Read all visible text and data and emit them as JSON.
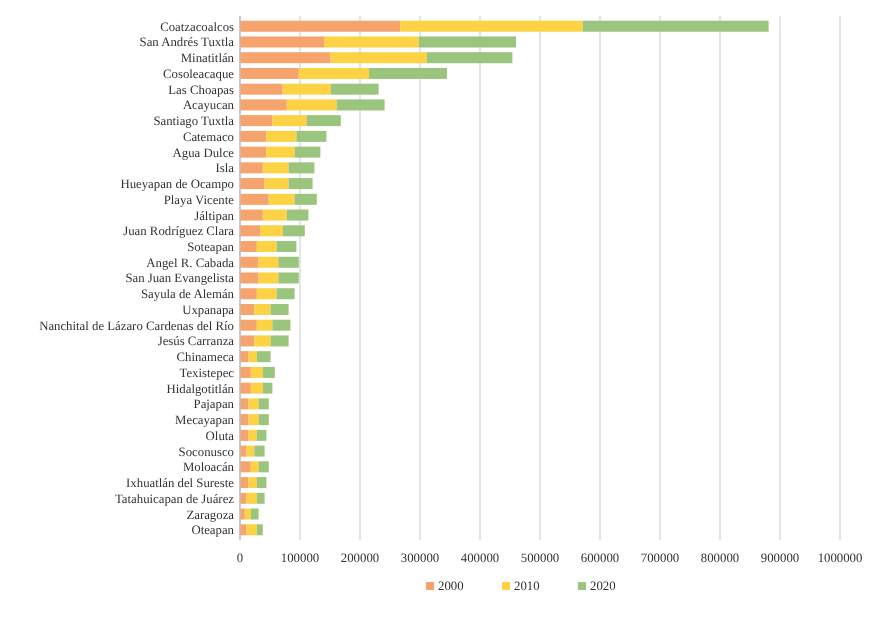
{
  "chart_data": {
    "type": "bar",
    "orientation": "horizontal",
    "stacked": true,
    "grid": "x",
    "legend": "bottom",
    "categories": [
      "Coatzacoalcos",
      "San Andrés Tuxtla",
      "Minatitlán",
      "Cosoleacaque",
      "Las Choapas",
      "Acayucan",
      "Santiago Tuxtla",
      "Catemaco",
      "Agua Dulce",
      "Isla",
      "Hueyapan de Ocampo",
      "Playa Vicente",
      "Jáltipan",
      "Juan Rodríguez Clara",
      "Soteapan",
      "Angel R. Cabada",
      "San Juan Evangelista",
      "Sayula de Alemán",
      "Uxpanapa",
      "Nanchital de Lázaro Cardenas del Río",
      "Jesús Carranza",
      "Chinameca",
      "Texistepec",
      "Hidalgotitlán",
      "Pajapan",
      "Mecayapan",
      "Oluta",
      "Soconusco",
      "Moloacán",
      "Ixhuatlán del Sureste",
      "Tatahuicapan de Juárez",
      "Zaragoza",
      "Oteapan"
    ],
    "series": [
      {
        "name": "2000",
        "color": "#f4a46c",
        "values": [
          267000,
          141000,
          151000,
          98000,
          71000,
          78000,
          54000,
          44000,
          44000,
          38000,
          41000,
          48000,
          38000,
          34000,
          28000,
          31000,
          31000,
          28000,
          24000,
          28000,
          24000,
          14000,
          18000,
          18000,
          14000,
          14000,
          14000,
          11000,
          18000,
          14000,
          11000,
          8000,
          11000
        ]
      },
      {
        "name": "2010",
        "color": "#fdd244",
        "values": [
          304000,
          157000,
          160000,
          117000,
          80000,
          83000,
          57000,
          50000,
          47000,
          43000,
          40000,
          43000,
          40000,
          37000,
          33000,
          33000,
          33000,
          33000,
          27000,
          26000,
          27000,
          14000,
          20000,
          20000,
          17000,
          17000,
          14000,
          13000,
          13000,
          14000,
          17000,
          10000,
          17000
        ]
      },
      {
        "name": "2020",
        "color": "#9bc47c",
        "values": [
          310000,
          162000,
          143000,
          130000,
          80000,
          80000,
          57000,
          50000,
          43000,
          43000,
          40000,
          37000,
          36000,
          37000,
          33000,
          34000,
          34000,
          30000,
          30000,
          30000,
          30000,
          23000,
          20000,
          16000,
          17000,
          17000,
          16000,
          17000,
          17000,
          16000,
          13000,
          13000,
          10000
        ]
      }
    ],
    "xlim": [
      0,
      1000000
    ],
    "xticks": [
      0,
      100000,
      200000,
      300000,
      400000,
      500000,
      600000,
      700000,
      800000,
      900000,
      1000000
    ]
  }
}
